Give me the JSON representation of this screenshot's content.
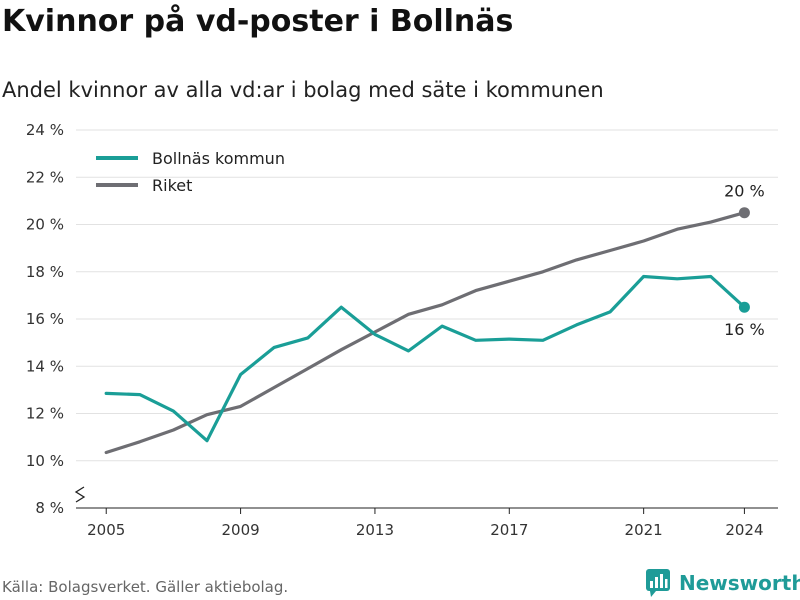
{
  "title": "Kvinnor på vd-poster i Bollnäs",
  "subtitle": "Andel kvinnor av alla vd:ar i bolag med säte i kommunen",
  "source": "Källa: Bolagsverket. Gäller aktiebolag.",
  "brand": "Newsworthy",
  "colors": {
    "bollnas": "#1a9e97",
    "riket": "#6e6e73",
    "grid": "#e2e2e2",
    "axis": "#222222"
  },
  "chart_data": {
    "type": "line",
    "x": [
      2005,
      2006,
      2007,
      2008,
      2009,
      2010,
      2011,
      2012,
      2013,
      2014,
      2015,
      2016,
      2017,
      2018,
      2019,
      2020,
      2021,
      2022,
      2023,
      2024
    ],
    "x_ticks": [
      "2005",
      "2009",
      "2013",
      "2017",
      "2021",
      "2024"
    ],
    "x_tick_values": [
      2005,
      2009,
      2013,
      2017,
      2021,
      2024
    ],
    "y_ticks": [
      "8 %",
      "10 %",
      "12 %",
      "14 %",
      "16 %",
      "18 %",
      "20 %",
      "22 %",
      "24 %"
    ],
    "y_tick_values": [
      8,
      10,
      12,
      14,
      16,
      18,
      20,
      22,
      24
    ],
    "ylim": [
      8,
      24
    ],
    "xlim": [
      2004.1,
      2025
    ],
    "grid": true,
    "y_axis_break": true,
    "legend_position": "top-left",
    "series": [
      {
        "name": "Bollnäs kommun",
        "color_key": "bollnas",
        "values": [
          12.85,
          12.8,
          12.1,
          10.85,
          13.65,
          14.8,
          15.2,
          16.5,
          15.35,
          14.65,
          15.7,
          15.1,
          15.15,
          15.1,
          15.75,
          16.3,
          17.8,
          17.7,
          17.8,
          16.5
        ],
        "end_label": "16 %",
        "end_label_position": "below"
      },
      {
        "name": "Riket",
        "color_key": "riket",
        "values": [
          10.35,
          10.8,
          11.3,
          11.95,
          12.3,
          13.1,
          13.9,
          14.7,
          15.45,
          16.2,
          16.6,
          17.2,
          17.6,
          18.0,
          18.5,
          18.9,
          19.3,
          19.8,
          20.1,
          20.5
        ],
        "end_label": "20 %",
        "end_label_position": "above"
      }
    ]
  }
}
